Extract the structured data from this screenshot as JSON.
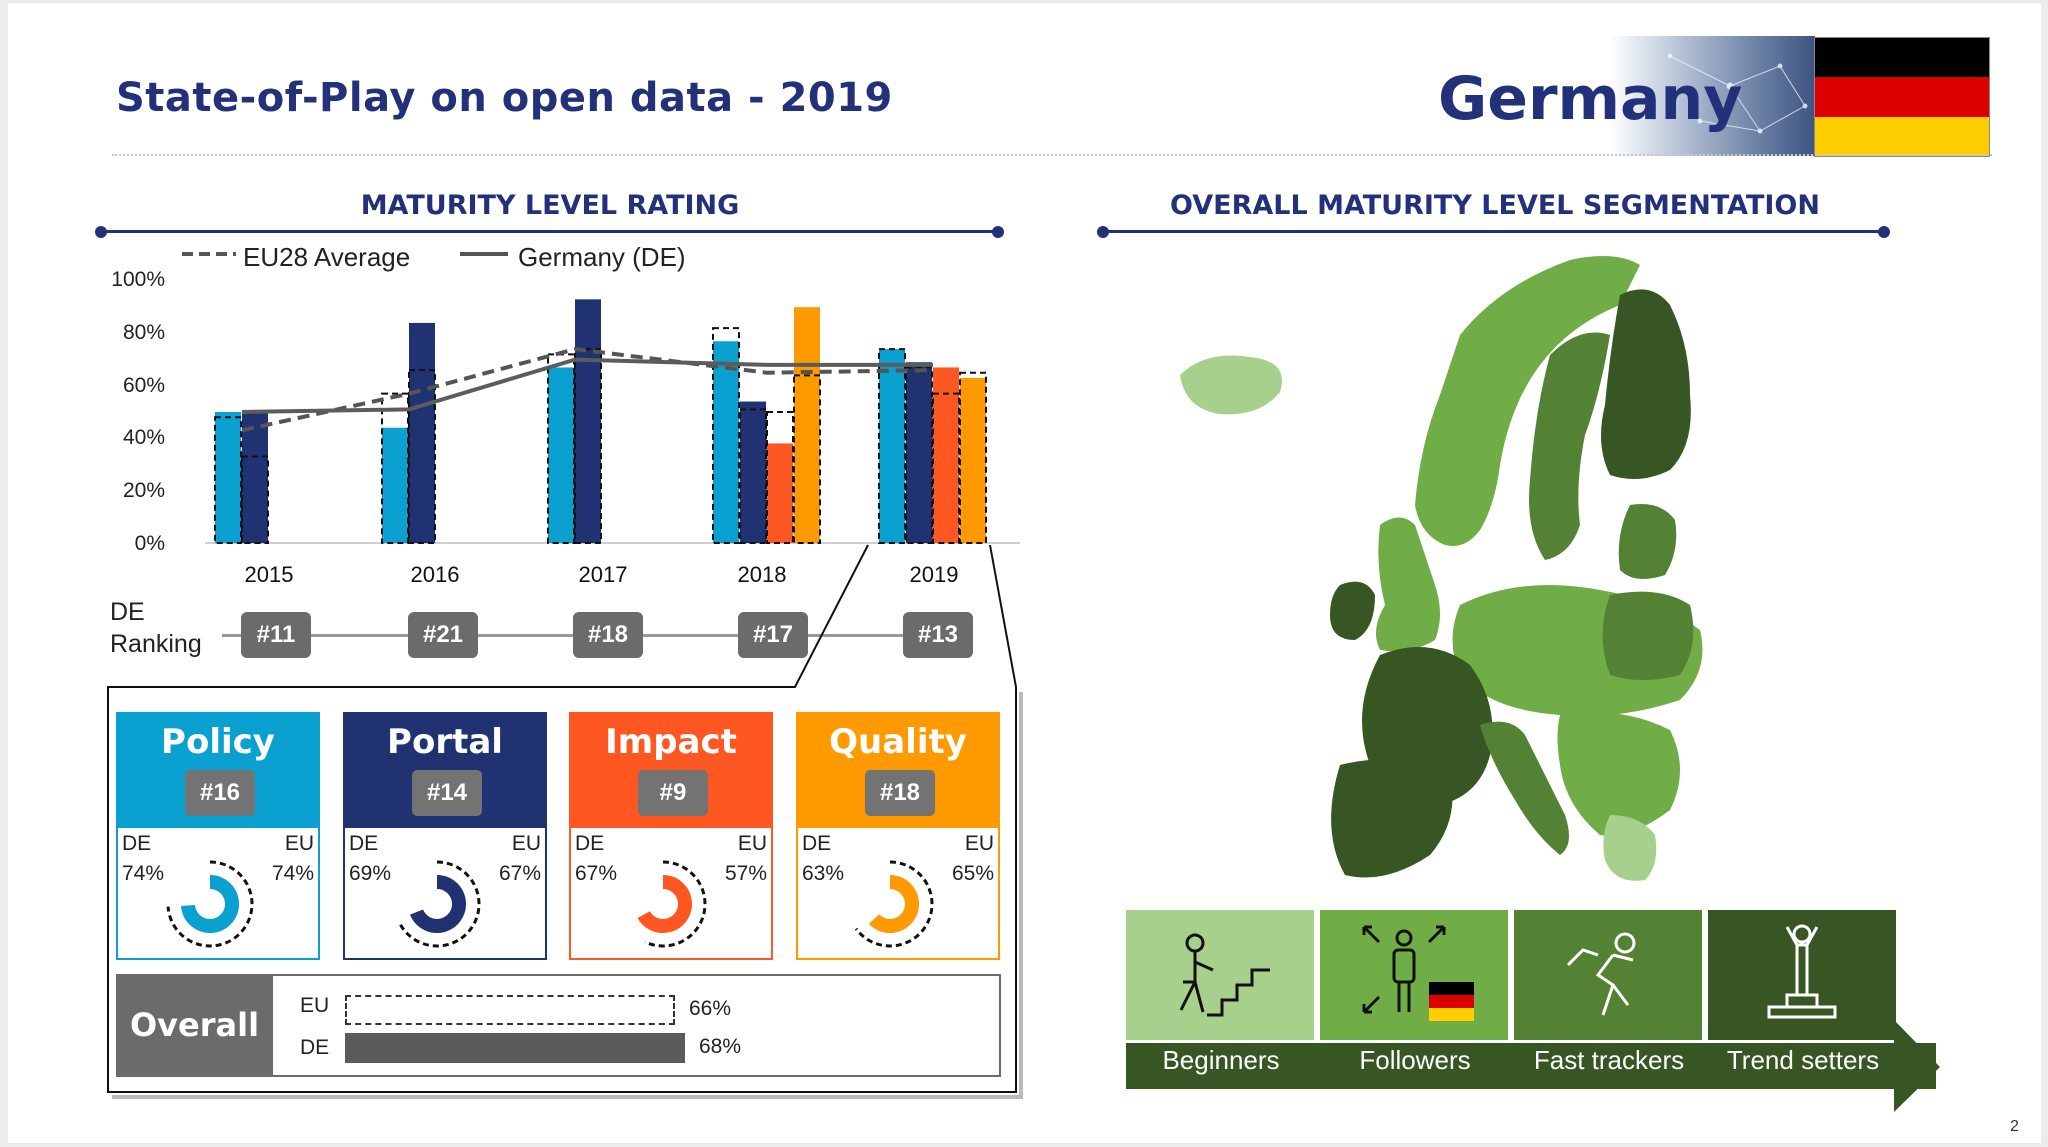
{
  "header": {
    "title": "State-of-Play on open data - 2019",
    "country": "Germany",
    "flag_colors": [
      "#000000",
      "#dd0000",
      "#ffce00"
    ]
  },
  "left_section": {
    "title": "MATURITY LEVEL RATING"
  },
  "right_section": {
    "title": "OVERALL MATURITY LEVEL SEGMENTATION"
  },
  "chart_data": {
    "type": "bar",
    "categories": [
      "2015",
      "2016",
      "2017",
      "2018",
      "2019"
    ],
    "ylim": [
      0,
      100
    ],
    "yticks": [
      "0%",
      "20%",
      "40%",
      "60%",
      "80%",
      "100%"
    ],
    "legend": [
      "EU28 Average",
      "Germany (DE)"
    ],
    "series": [
      {
        "name": "Policy",
        "color": "#0aa0d0",
        "values": [
          50,
          44,
          67,
          77,
          74
        ],
        "eu_values": [
          48,
          57,
          72,
          82,
          74
        ]
      },
      {
        "name": "Portal",
        "color": "#213273",
        "values": [
          50,
          84,
          93,
          54,
          69
        ],
        "eu_values": [
          33,
          66,
          74,
          51,
          67
        ]
      },
      {
        "name": "Impact",
        "color": "#fe5722",
        "values": [
          null,
          null,
          null,
          38,
          67
        ],
        "eu_values": [
          null,
          null,
          null,
          50,
          57
        ]
      },
      {
        "name": "Quality",
        "color": "#ff9900",
        "values": [
          null,
          null,
          null,
          90,
          63
        ],
        "eu_values": [
          null,
          null,
          null,
          64,
          65
        ]
      }
    ],
    "lines": [
      {
        "name": "EU28 Average",
        "style": "dashed",
        "values": [
          43,
          57,
          74,
          65,
          66
        ]
      },
      {
        "name": "Germany (DE)",
        "style": "solid",
        "values": [
          50,
          51,
          70,
          68,
          68
        ]
      }
    ]
  },
  "ranking": {
    "label_line1": "DE",
    "label_line2": "Ranking",
    "items": [
      "#11",
      "#21",
      "#18",
      "#17",
      "#13"
    ]
  },
  "dimensions": [
    {
      "name": "Policy",
      "rank": "#16",
      "de_label": "DE",
      "eu_label": "EU",
      "de": "74%",
      "eu": "74%",
      "de_val": 74,
      "eu_val": 74,
      "color": "#0aa0d0"
    },
    {
      "name": "Portal",
      "rank": "#14",
      "de_label": "DE",
      "eu_label": "EU",
      "de": "69%",
      "eu": "67%",
      "de_val": 69,
      "eu_val": 67,
      "color": "#213273"
    },
    {
      "name": "Impact",
      "rank": "#9",
      "de_label": "DE",
      "eu_label": "EU",
      "de": "67%",
      "eu": "57%",
      "de_val": 67,
      "eu_val": 57,
      "color": "#fe5722"
    },
    {
      "name": "Quality",
      "rank": "#18",
      "de_label": "DE",
      "eu_label": "EU",
      "de": "63%",
      "eu": "65%",
      "de_val": 63,
      "eu_val": 65,
      "color": "#ff9900"
    }
  ],
  "overall": {
    "label": "Overall",
    "eu_label": "EU",
    "de_label": "DE",
    "eu_value": "66%",
    "de_value": "68%",
    "eu_val": 66,
    "de_val": 68
  },
  "segments": [
    {
      "label": "Beginners",
      "icon": "stairs-climber-icon",
      "color": "#a8d08d"
    },
    {
      "label": "Followers",
      "icon": "person-expand-icon",
      "color": "#70ad47"
    },
    {
      "label": "Fast trackers",
      "icon": "runner-icon",
      "color": "#548235"
    },
    {
      "label": "Trend setters",
      "icon": "podium-winner-icon",
      "color": "#375623"
    }
  ],
  "segments_bar_color": "#375623",
  "page_number": "2"
}
